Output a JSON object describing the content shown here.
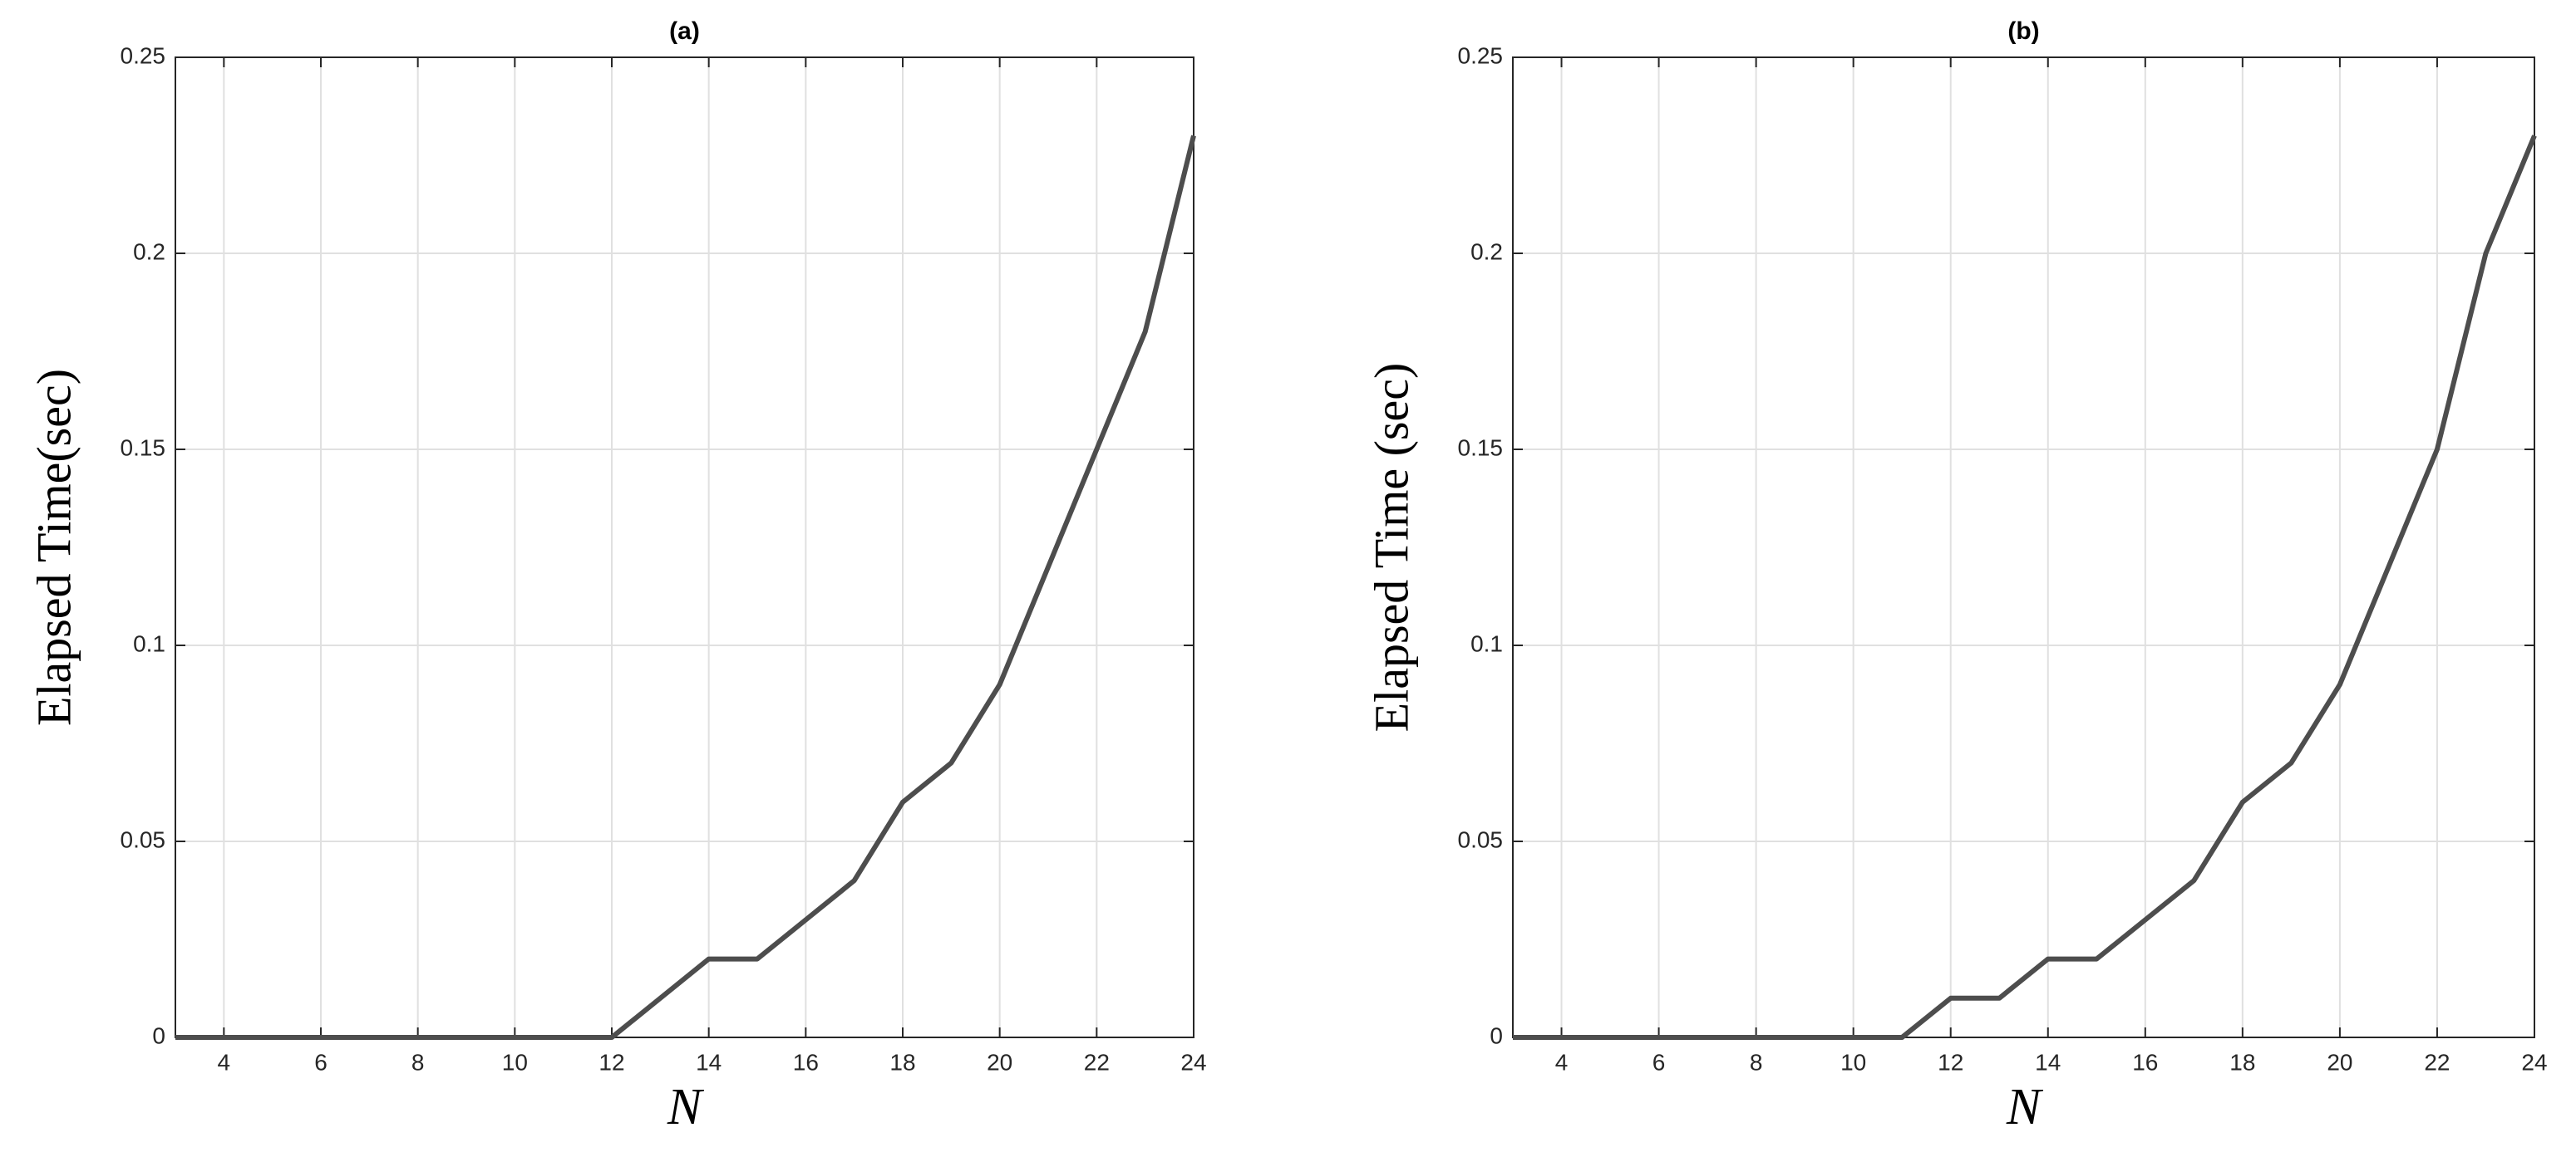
{
  "chart_data": [
    {
      "type": "line",
      "title": "(a)",
      "x_label": "N",
      "y_label": "Elapsed Time(sec)",
      "x": [
        3,
        4,
        5,
        6,
        7,
        8,
        9,
        10,
        11,
        12,
        13,
        14,
        15,
        16,
        17,
        18,
        19,
        20,
        21,
        22,
        23,
        24
      ],
      "values": [
        0,
        0,
        0,
        0,
        0,
        0,
        0,
        0,
        0,
        0,
        0.01,
        0.02,
        0.02,
        0.03,
        0.04,
        0.06,
        0.07,
        0.09,
        0.12,
        0.15,
        0.18,
        0.23
      ],
      "color": "#4d4d4d",
      "xlim": [
        3,
        24
      ],
      "xticks": [
        4,
        6,
        8,
        10,
        12,
        14,
        16,
        18,
        20,
        22,
        24
      ],
      "ylim": [
        0,
        0.25
      ],
      "yticks": [
        0,
        0.05,
        0.1,
        0.15,
        0.2,
        0.25
      ],
      "grid": true
    },
    {
      "type": "line",
      "title": "(b)",
      "x_label": "N",
      "y_label": "Elapsed Time (sec)",
      "x": [
        3,
        4,
        5,
        6,
        7,
        8,
        9,
        10,
        11,
        12,
        13,
        14,
        15,
        16,
        17,
        18,
        19,
        20,
        21,
        22,
        23,
        24
      ],
      "values": [
        0,
        0,
        0,
        0,
        0,
        0,
        0,
        0,
        0,
        0.01,
        0.01,
        0.02,
        0.02,
        0.03,
        0.04,
        0.06,
        0.07,
        0.09,
        0.12,
        0.15,
        0.2,
        0.23
      ],
      "color": "#4d4d4d",
      "xlim": [
        3,
        24
      ],
      "xticks": [
        4,
        6,
        8,
        10,
        12,
        14,
        16,
        18,
        20,
        22,
        24
      ],
      "ylim": [
        0,
        0.25
      ],
      "yticks": [
        0,
        0.05,
        0.1,
        0.15,
        0.2,
        0.25
      ],
      "grid": true
    }
  ]
}
